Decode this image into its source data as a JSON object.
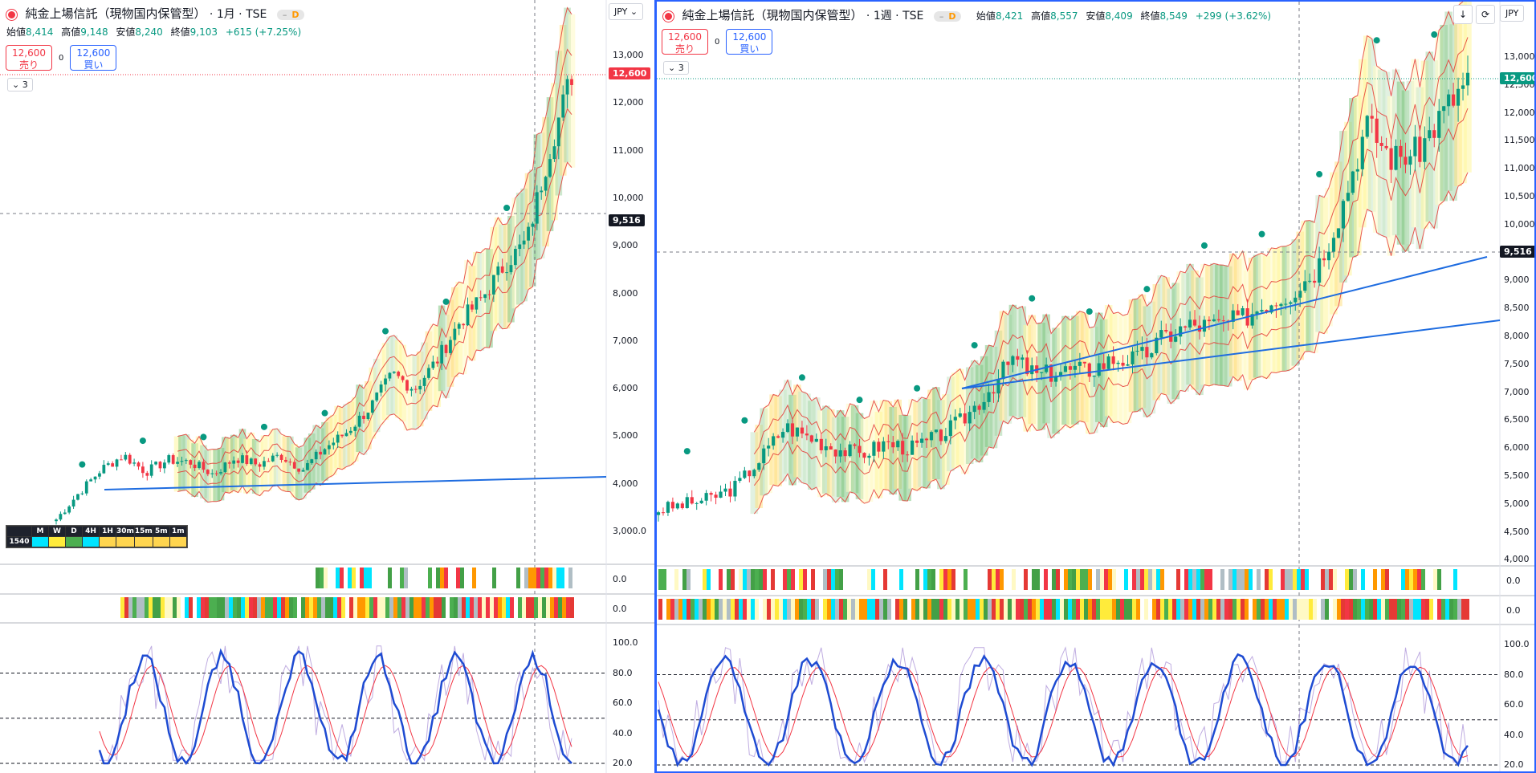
{
  "left": {
    "title": "純金上場信託（現物国内保管型）",
    "timeframe": "· 1月 · TSE",
    "badge_dash": "–",
    "badge_d": "D",
    "ohlc": {
      "o_label": "始値",
      "o": "8,414",
      "h_label": "高値",
      "h": "9,148",
      "l_label": "安値",
      "l": "8,240",
      "c_label": "終値",
      "c": "9,103",
      "chg": "+615 (+7.25%)"
    },
    "sell_price": "12,600",
    "sell_label": "売り",
    "spread": "0",
    "buy_price": "12,600",
    "buy_label": "買い",
    "collapse_label": "3",
    "currency": "JPY",
    "last_price": "12,600",
    "cursor_price": "9,516",
    "price_ticks": [
      "13,000",
      "12,000",
      "11,000",
      "10,000",
      "9,000",
      "8,000",
      "7,000",
      "6,000",
      "5,000",
      "4,000",
      "3,000.0"
    ],
    "ind1_value": "0.0",
    "ind2_value": "0.0",
    "osc_ticks": [
      "100.0",
      "80.0",
      "60.0",
      "40.0",
      "20.0"
    ],
    "mtf": {
      "headers": [
        "M",
        "W",
        "D",
        "4H",
        "1H",
        "30m",
        "15m",
        "5m",
        "1m"
      ],
      "symbol": "1540",
      "colors": [
        "#00e5ff",
        "#ffeb3b",
        "#4caf50",
        "#00e5ff",
        "#ffd54f",
        "#ffd54f",
        "#ffd54f",
        "#ffd54f",
        "#ffd54f"
      ]
    }
  },
  "right": {
    "title": "純金上場信託（現物国内保管型）",
    "timeframe": "· 1週 · TSE",
    "badge_dash": "–",
    "badge_d": "D",
    "ohlc": {
      "o_label": "始値",
      "o": "8,421",
      "h_label": "高値",
      "h": "8,557",
      "l_label": "安値",
      "l": "8,409",
      "c_label": "終値",
      "c": "8,549",
      "chg": "+299 (+3.62%)"
    },
    "sell_price": "12,600",
    "sell_label": "売り",
    "spread": "0",
    "buy_price": "12,600",
    "buy_label": "買い",
    "collapse_label": "3",
    "currency": "JPY",
    "last_price": "12,600",
    "cursor_price": "9,516",
    "price_ticks": [
      "13,000",
      "12,500",
      "12,000",
      "11,500",
      "11,000",
      "10,500",
      "10,000",
      "9,500",
      "9,000",
      "8,500",
      "8,000",
      "7,500",
      "7,000",
      "6,500",
      "6,000",
      "5,500",
      "5,000",
      "4,500",
      "4,000"
    ],
    "ind1_value": "0.0",
    "ind2_value": "0.0",
    "osc_ticks": [
      "100.0",
      "80.0",
      "60.0",
      "40.0",
      "20.0"
    ]
  },
  "colors": {
    "up": "#089981",
    "down": "#f23645",
    "blue": "#2962ff",
    "trend": "#1e6ce0"
  },
  "chart_data": [
    {
      "type": "line",
      "title": "純金上場信託（現物国内保管型） · 1月 · TSE",
      "ylim": [
        3000,
        13000
      ],
      "series": [
        {
          "values": [
            3250,
            3800,
            4300,
            4600,
            4250,
            4500,
            4450,
            4200,
            4550,
            4400,
            4600,
            4300,
            4750,
            5100,
            5600,
            6300,
            6000,
            6600,
            7400,
            7900,
            8600,
            9100,
            11000,
            12600
          ]
        }
      ]
    },
    {
      "type": "line",
      "title": "純金上場信託（現物国内保管型） · 1週 · TSE",
      "ylim": [
        4000,
        13000
      ],
      "series": [
        {
          "values": [
            4900,
            5000,
            5100,
            5300,
            5800,
            6400,
            6200,
            6000,
            5900,
            6100,
            6000,
            6200,
            6500,
            7000,
            7600,
            7300,
            7400,
            7400,
            7600,
            7600,
            8000,
            8200,
            8200,
            8300,
            8600,
            8800,
            9200,
            10300,
            11800,
            11200,
            11300,
            12000,
            12600
          ]
        }
      ]
    }
  ]
}
